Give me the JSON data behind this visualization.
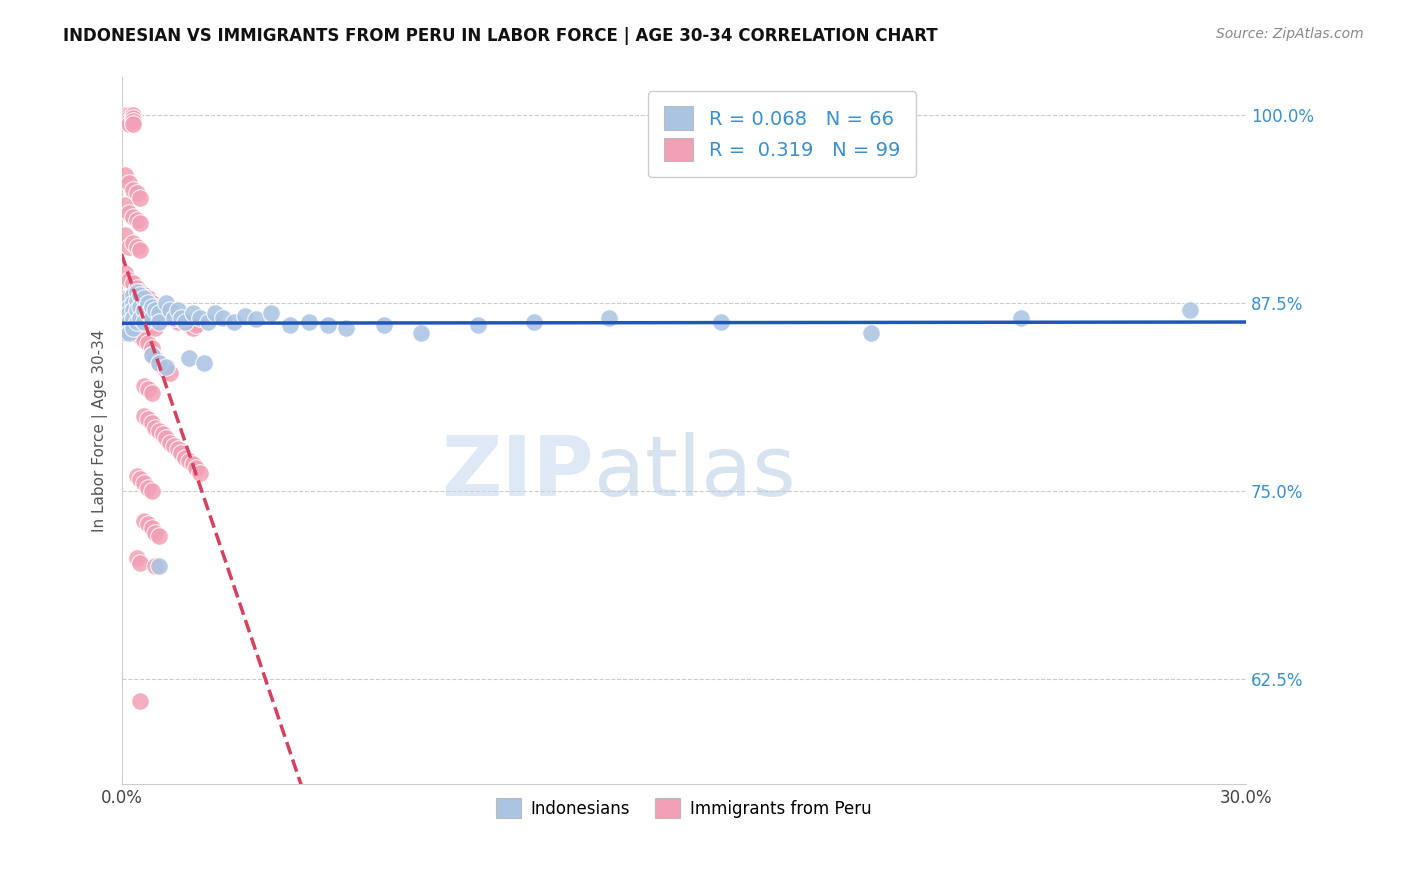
{
  "title": "INDONESIAN VS IMMIGRANTS FROM PERU IN LABOR FORCE | AGE 30-34 CORRELATION CHART",
  "source": "Source: ZipAtlas.com",
  "ylabel": "In Labor Force | Age 30-34",
  "xlim": [
    0.0,
    0.3
  ],
  "ylim": [
    0.555,
    1.025
  ],
  "xticks": [
    0.0,
    0.05,
    0.1,
    0.15,
    0.2,
    0.25,
    0.3
  ],
  "xticklabels": [
    "0.0%",
    "",
    "",
    "",
    "",
    "",
    "30.0%"
  ],
  "ytick_positions": [
    0.625,
    0.75,
    0.875,
    1.0
  ],
  "ytick_labels": [
    "62.5%",
    "75.0%",
    "87.5%",
    "100.0%"
  ],
  "blue_R": 0.068,
  "blue_N": 66,
  "pink_R": 0.319,
  "pink_N": 99,
  "blue_color": "#aac4e2",
  "pink_color": "#f2a0b5",
  "blue_line_color": "#2255bb",
  "pink_line_color": "#d84060",
  "blue_scatter": [
    [
      0.001,
      0.87
    ],
    [
      0.001,
      0.865
    ],
    [
      0.001,
      0.86
    ],
    [
      0.001,
      0.855
    ],
    [
      0.002,
      0.878
    ],
    [
      0.002,
      0.872
    ],
    [
      0.002,
      0.868
    ],
    [
      0.002,
      0.862
    ],
    [
      0.002,
      0.855
    ],
    [
      0.003,
      0.88
    ],
    [
      0.003,
      0.875
    ],
    [
      0.003,
      0.87
    ],
    [
      0.003,
      0.865
    ],
    [
      0.003,
      0.858
    ],
    [
      0.004,
      0.882
    ],
    [
      0.004,
      0.876
    ],
    [
      0.004,
      0.87
    ],
    [
      0.004,
      0.862
    ],
    [
      0.005,
      0.88
    ],
    [
      0.005,
      0.872
    ],
    [
      0.005,
      0.865
    ],
    [
      0.006,
      0.878
    ],
    [
      0.006,
      0.87
    ],
    [
      0.006,
      0.862
    ],
    [
      0.007,
      0.875
    ],
    [
      0.007,
      0.868
    ],
    [
      0.008,
      0.872
    ],
    [
      0.008,
      0.865
    ],
    [
      0.009,
      0.87
    ],
    [
      0.01,
      0.868
    ],
    [
      0.01,
      0.862
    ],
    [
      0.012,
      0.875
    ],
    [
      0.013,
      0.87
    ],
    [
      0.014,
      0.865
    ],
    [
      0.015,
      0.87
    ],
    [
      0.016,
      0.865
    ],
    [
      0.017,
      0.862
    ],
    [
      0.019,
      0.868
    ],
    [
      0.021,
      0.865
    ],
    [
      0.023,
      0.862
    ],
    [
      0.025,
      0.868
    ],
    [
      0.027,
      0.865
    ],
    [
      0.03,
      0.862
    ],
    [
      0.033,
      0.866
    ],
    [
      0.036,
      0.864
    ],
    [
      0.04,
      0.868
    ],
    [
      0.045,
      0.86
    ],
    [
      0.05,
      0.862
    ],
    [
      0.055,
      0.86
    ],
    [
      0.06,
      0.858
    ],
    [
      0.07,
      0.86
    ],
    [
      0.08,
      0.855
    ],
    [
      0.095,
      0.86
    ],
    [
      0.11,
      0.862
    ],
    [
      0.13,
      0.865
    ],
    [
      0.16,
      0.862
    ],
    [
      0.2,
      0.855
    ],
    [
      0.24,
      0.865
    ],
    [
      0.285,
      0.87
    ],
    [
      0.008,
      0.84
    ],
    [
      0.01,
      0.835
    ],
    [
      0.012,
      0.832
    ],
    [
      0.018,
      0.838
    ],
    [
      0.022,
      0.835
    ],
    [
      0.01,
      0.7
    ]
  ],
  "pink_scatter": [
    [
      0.001,
      1.0
    ],
    [
      0.001,
      0.998
    ],
    [
      0.002,
      1.0
    ],
    [
      0.002,
      0.998
    ],
    [
      0.002,
      0.996
    ],
    [
      0.002,
      0.994
    ],
    [
      0.003,
      1.0
    ],
    [
      0.003,
      0.998
    ],
    [
      0.003,
      0.996
    ],
    [
      0.003,
      0.994
    ],
    [
      0.001,
      0.96
    ],
    [
      0.001,
      0.94
    ],
    [
      0.001,
      0.92
    ],
    [
      0.002,
      0.955
    ],
    [
      0.002,
      0.935
    ],
    [
      0.002,
      0.912
    ],
    [
      0.003,
      0.95
    ],
    [
      0.003,
      0.932
    ],
    [
      0.003,
      0.915
    ],
    [
      0.004,
      0.948
    ],
    [
      0.004,
      0.93
    ],
    [
      0.004,
      0.912
    ],
    [
      0.005,
      0.945
    ],
    [
      0.005,
      0.928
    ],
    [
      0.005,
      0.91
    ],
    [
      0.001,
      0.895
    ],
    [
      0.001,
      0.878
    ],
    [
      0.001,
      0.862
    ],
    [
      0.002,
      0.89
    ],
    [
      0.002,
      0.875
    ],
    [
      0.002,
      0.86
    ],
    [
      0.003,
      0.888
    ],
    [
      0.003,
      0.872
    ],
    [
      0.003,
      0.858
    ],
    [
      0.004,
      0.885
    ],
    [
      0.004,
      0.87
    ],
    [
      0.004,
      0.855
    ],
    [
      0.005,
      0.882
    ],
    [
      0.005,
      0.868
    ],
    [
      0.005,
      0.853
    ],
    [
      0.006,
      0.88
    ],
    [
      0.006,
      0.865
    ],
    [
      0.006,
      0.85
    ],
    [
      0.007,
      0.878
    ],
    [
      0.007,
      0.862
    ],
    [
      0.007,
      0.848
    ],
    [
      0.008,
      0.875
    ],
    [
      0.008,
      0.86
    ],
    [
      0.008,
      0.845
    ],
    [
      0.009,
      0.872
    ],
    [
      0.009,
      0.858
    ],
    [
      0.01,
      0.87
    ],
    [
      0.011,
      0.868
    ],
    [
      0.012,
      0.865
    ],
    [
      0.013,
      0.868
    ],
    [
      0.014,
      0.865
    ],
    [
      0.015,
      0.862
    ],
    [
      0.016,
      0.865
    ],
    [
      0.017,
      0.862
    ],
    [
      0.018,
      0.86
    ],
    [
      0.019,
      0.858
    ],
    [
      0.02,
      0.86
    ],
    [
      0.008,
      0.84
    ],
    [
      0.009,
      0.838
    ],
    [
      0.01,
      0.835
    ],
    [
      0.011,
      0.832
    ],
    [
      0.012,
      0.83
    ],
    [
      0.013,
      0.828
    ],
    [
      0.006,
      0.82
    ],
    [
      0.007,
      0.818
    ],
    [
      0.008,
      0.815
    ],
    [
      0.006,
      0.8
    ],
    [
      0.007,
      0.798
    ],
    [
      0.008,
      0.795
    ],
    [
      0.009,
      0.792
    ],
    [
      0.01,
      0.79
    ],
    [
      0.011,
      0.788
    ],
    [
      0.012,
      0.785
    ],
    [
      0.013,
      0.782
    ],
    [
      0.014,
      0.78
    ],
    [
      0.015,
      0.778
    ],
    [
      0.016,
      0.775
    ],
    [
      0.017,
      0.772
    ],
    [
      0.018,
      0.77
    ],
    [
      0.019,
      0.768
    ],
    [
      0.02,
      0.765
    ],
    [
      0.021,
      0.762
    ],
    [
      0.004,
      0.76
    ],
    [
      0.005,
      0.758
    ],
    [
      0.006,
      0.755
    ],
    [
      0.007,
      0.752
    ],
    [
      0.008,
      0.75
    ],
    [
      0.006,
      0.73
    ],
    [
      0.007,
      0.728
    ],
    [
      0.008,
      0.725
    ],
    [
      0.009,
      0.722
    ],
    [
      0.01,
      0.72
    ],
    [
      0.004,
      0.705
    ],
    [
      0.005,
      0.702
    ],
    [
      0.009,
      0.7
    ],
    [
      0.005,
      0.61
    ]
  ],
  "watermark_zip": "ZIP",
  "watermark_atlas": "atlas",
  "watermark_color_zip": "#c5d8f0",
  "watermark_color_atlas": "#b8cce4",
  "legend_labels": [
    "Indonesians",
    "Immigrants from Peru"
  ]
}
